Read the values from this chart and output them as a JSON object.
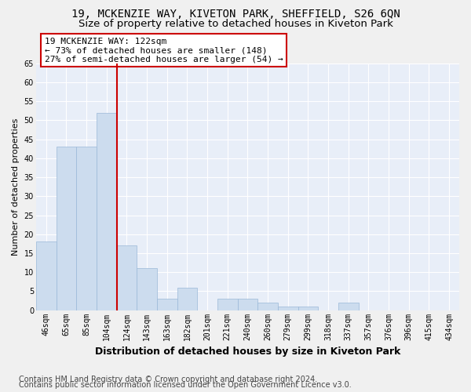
{
  "title": "19, MCKENZIE WAY, KIVETON PARK, SHEFFIELD, S26 6QN",
  "subtitle": "Size of property relative to detached houses in Kiveton Park",
  "xlabel": "Distribution of detached houses by size in Kiveton Park",
  "ylabel": "Number of detached properties",
  "footnote1": "Contains HM Land Registry data © Crown copyright and database right 2024.",
  "footnote2": "Contains public sector information licensed under the Open Government Licence v3.0.",
  "categories": [
    "46sqm",
    "65sqm",
    "85sqm",
    "104sqm",
    "124sqm",
    "143sqm",
    "163sqm",
    "182sqm",
    "201sqm",
    "221sqm",
    "240sqm",
    "260sqm",
    "279sqm",
    "299sqm",
    "318sqm",
    "337sqm",
    "357sqm",
    "376sqm",
    "396sqm",
    "415sqm",
    "434sqm"
  ],
  "values": [
    18,
    43,
    43,
    52,
    17,
    11,
    3,
    6,
    0,
    3,
    3,
    2,
    1,
    1,
    0,
    2,
    0,
    0,
    0,
    0,
    0
  ],
  "bar_color": "#ccdcee",
  "bar_edge_color": "#9ab8d8",
  "annotation_line1": "19 MCKENZIE WAY: 122sqm",
  "annotation_line2": "← 73% of detached houses are smaller (148)",
  "annotation_line3": "27% of semi-detached houses are larger (54) →",
  "vline_x": 3.5,
  "vline_color": "#cc0000",
  "box_edge_color": "#cc0000",
  "ylim_min": 0,
  "ylim_max": 65,
  "yticks": [
    0,
    5,
    10,
    15,
    20,
    25,
    30,
    35,
    40,
    45,
    50,
    55,
    60,
    65
  ],
  "axes_bg_color": "#e8eef8",
  "grid_color": "#ffffff",
  "fig_bg_color": "#f0f0f0",
  "title_fontsize": 10,
  "subtitle_fontsize": 9.5,
  "xlabel_fontsize": 9,
  "ylabel_fontsize": 8,
  "tick_fontsize": 7,
  "annot_fontsize": 8,
  "footnote_fontsize": 7
}
